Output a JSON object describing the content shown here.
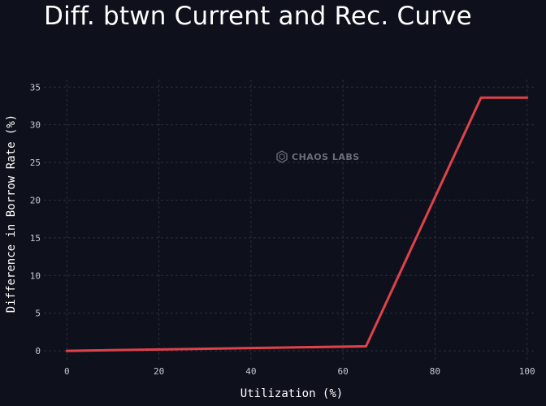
{
  "chart_data": {
    "type": "line",
    "title": "Diff. btwn Current and Rec. Curve",
    "xlabel": "Utilization (%)",
    "ylabel": "Difference in Borrow Rate (%)",
    "xlim": [
      -5,
      102
    ],
    "ylim": [
      -1.5,
      36
    ],
    "xticks": [
      0,
      20,
      40,
      60,
      80,
      100
    ],
    "yticks": [
      0,
      5,
      10,
      15,
      20,
      25,
      30,
      35
    ],
    "grid": true,
    "series": [
      {
        "color": "#e0414b",
        "x": [
          0,
          65,
          90,
          100
        ],
        "y": [
          0,
          0.6,
          33.6,
          33.6
        ]
      }
    ]
  },
  "watermark": {
    "text": "CHAOS LABS",
    "icon": "chaos-labs-logo-icon"
  }
}
